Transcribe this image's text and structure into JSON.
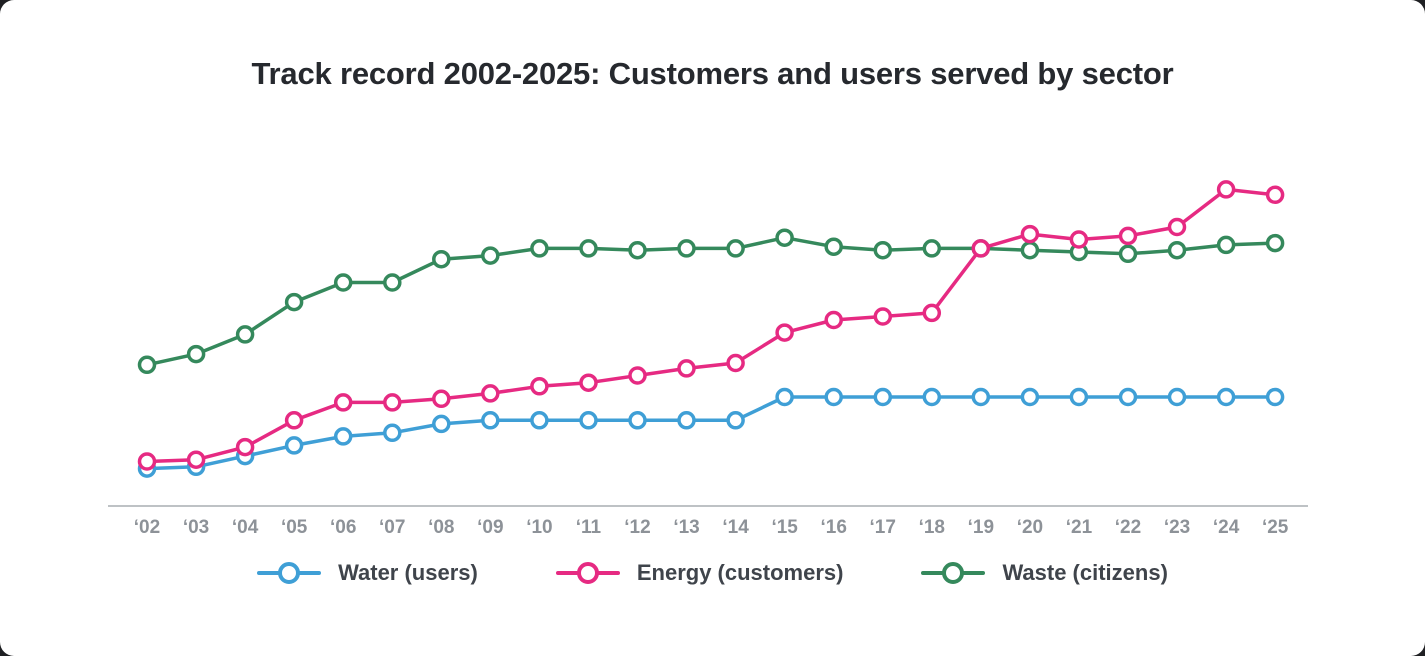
{
  "title": "Track record 2002-2025: Customers and users served by sector",
  "chart_data": {
    "type": "line",
    "x_tick_labels": [
      "‘02",
      "‘03",
      "‘04",
      "‘05",
      "‘06",
      "‘07",
      "‘08",
      "‘09",
      "‘10",
      "‘11",
      "‘12",
      "‘13",
      "‘14",
      "‘15",
      "‘16",
      "‘17",
      "‘18",
      "‘19",
      "‘20",
      "‘21",
      "‘22",
      "‘23",
      "‘24",
      "‘25"
    ],
    "x_label": "",
    "y_label": "",
    "y_axis": "none shown — values are relative estimates on a 0-100 visual scale",
    "ylim": [
      0,
      100
    ],
    "grid": false,
    "legend_position": "bottom",
    "axis_color": "#a9adb2",
    "tick_label_color": "#8d9298",
    "marker_style": "open circle, white fill",
    "series": [
      {
        "name": "Water (users)",
        "color": "#3f9fd6",
        "values": [
          11,
          11.5,
          14.5,
          17.5,
          20,
          21,
          23.5,
          24.5,
          24.5,
          24.5,
          24.5,
          24.5,
          24.5,
          31,
          31,
          31,
          31,
          31,
          31,
          31,
          31,
          31,
          31,
          31
        ]
      },
      {
        "name": "Energy (customers)",
        "color": "#e62a82",
        "values": [
          13,
          13.5,
          17,
          24.5,
          29.5,
          29.5,
          30.5,
          32,
          34,
          35,
          37,
          39,
          40.5,
          49,
          52.5,
          53.5,
          54.5,
          72.5,
          76.5,
          75,
          76,
          78.5,
          89,
          87.5
        ]
      },
      {
        "name": "Waste (citizens)",
        "color": "#35895c",
        "values": [
          40,
          43,
          48.5,
          57.5,
          63,
          63,
          69.5,
          70.5,
          72.5,
          72.5,
          72,
          72.5,
          72.5,
          75.5,
          73,
          72,
          72.5,
          72.5,
          72,
          71.5,
          71,
          72,
          73.5,
          74
        ]
      }
    ]
  }
}
